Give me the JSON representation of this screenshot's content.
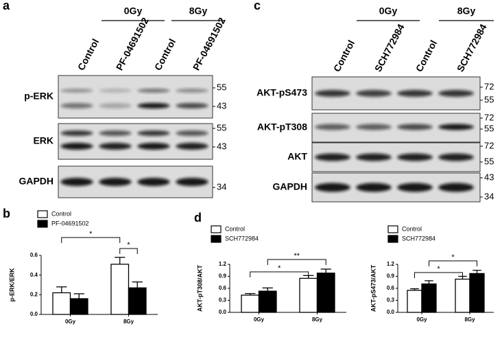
{
  "panel_labels": [
    "a",
    "b",
    "c",
    "d"
  ],
  "blot_a": {
    "groups": [
      "0Gy",
      "8Gy"
    ],
    "lanes": [
      "Control",
      "PF-04691502",
      "Control",
      "PF-04691502"
    ],
    "rows": [
      {
        "label": "p-ERK",
        "markers": [
          55,
          43
        ]
      },
      {
        "label": "ERK",
        "markers": [
          55,
          43
        ]
      },
      {
        "label": "GAPDH",
        "markers": [
          34
        ]
      }
    ]
  },
  "blot_c": {
    "groups": [
      "0Gy",
      "8Gy"
    ],
    "lanes": [
      "Control",
      "SCH772984",
      "Control",
      "SCH772984"
    ],
    "rows": [
      {
        "label": "AKT-pS473",
        "markers": [
          72,
          55
        ]
      },
      {
        "label": "AKT-pT308",
        "markers": [
          72,
          55
        ]
      },
      {
        "label": "AKT",
        "markers": [
          72,
          55
        ]
      },
      {
        "label": "GAPDH",
        "markers": [
          43,
          34
        ]
      }
    ]
  },
  "chart_data": [
    {
      "type": "bar",
      "ylabel": "p-ERK/ERK",
      "categories": [
        "0Gy",
        "8Gy"
      ],
      "series": [
        {
          "name": "Control",
          "color": "#ffffff",
          "values": [
            0.22,
            0.51
          ],
          "errors": [
            0.06,
            0.07
          ]
        },
        {
          "name": "PF-04691502",
          "color": "#000000",
          "values": [
            0.16,
            0.27
          ],
          "errors": [
            0.05,
            0.06
          ]
        }
      ],
      "ylim": [
        0,
        0.6
      ],
      "yticks": [
        {
          "value": 0,
          "label": "0.0"
        },
        0.2,
        0.4,
        0.6
      ],
      "annotations": [
        "*",
        "*"
      ]
    },
    {
      "type": "bar",
      "ylabel": "AKT-pT308/AKT",
      "categories": [
        "0Gy",
        "8Gy"
      ],
      "series": [
        {
          "name": "Control",
          "color": "#ffffff",
          "values": [
            0.43,
            0.85
          ],
          "errors": [
            0.04,
            0.07
          ]
        },
        {
          "name": "SCH772984",
          "color": "#000000",
          "values": [
            0.53,
            0.98
          ],
          "errors": [
            0.08,
            0.1
          ]
        }
      ],
      "ylim": [
        0,
        1.2
      ],
      "yticks": [
        {
          "value": 0,
          "label": "0.0"
        },
        0.3,
        0.6,
        0.9,
        1.2
      ],
      "annotations": [
        "**",
        "*"
      ]
    },
    {
      "type": "bar",
      "ylabel": "AKT-pS473/AKT",
      "categories": [
        "0Gy",
        "8Gy"
      ],
      "series": [
        {
          "name": "Control",
          "color": "#ffffff",
          "values": [
            0.55,
            0.83
          ],
          "errors": [
            0.04,
            0.07
          ]
        },
        {
          "name": "SCH772984",
          "color": "#000000",
          "values": [
            0.71,
            0.97
          ],
          "errors": [
            0.08,
            0.08
          ]
        }
      ],
      "ylim": [
        0,
        1.2
      ],
      "yticks": [
        {
          "value": 0,
          "label": "0.0"
        },
        0.3,
        0.6,
        0.9,
        1.2
      ],
      "annotations": [
        "*",
        "*"
      ]
    }
  ]
}
